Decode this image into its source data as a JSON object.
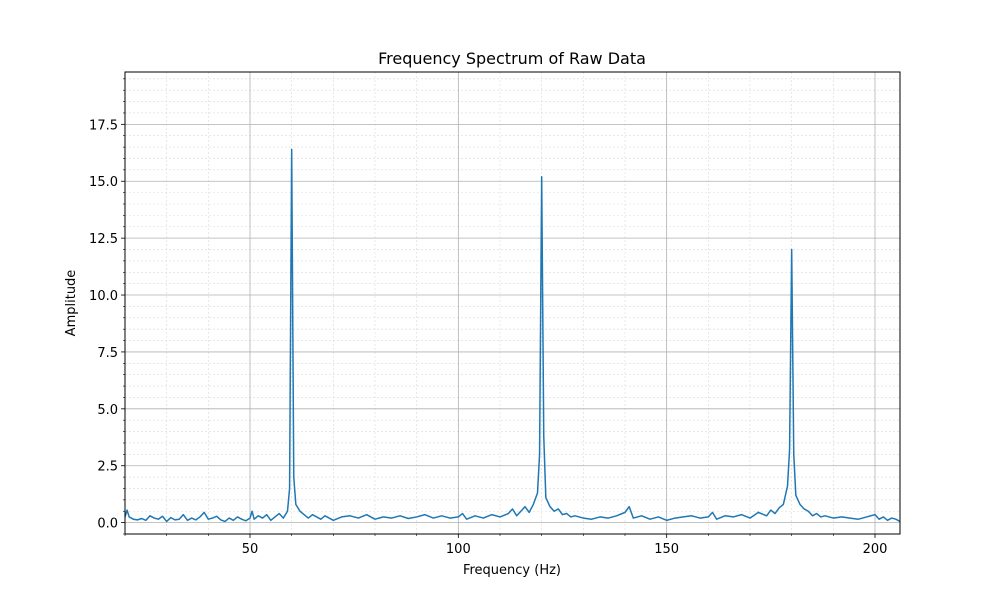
{
  "chart_data": {
    "type": "line",
    "title": "Frequency Spectrum of Raw Data",
    "xlabel": "Frequency (Hz)",
    "ylabel": "Amplitude",
    "xlim": [
      20,
      206
    ],
    "ylim": [
      -0.5,
      19.8
    ],
    "x_ticks": [
      50,
      100,
      150,
      200
    ],
    "y_ticks": [
      0.0,
      2.5,
      5.0,
      7.5,
      10.0,
      12.5,
      15.0,
      17.5
    ],
    "x_tick_labels": [
      "50",
      "100",
      "150",
      "200"
    ],
    "y_tick_labels": [
      "0.0",
      "2.5",
      "5.0",
      "7.5",
      "10.0",
      "12.5",
      "15.0",
      "17.5"
    ],
    "grid": {
      "major": true,
      "minor": true
    },
    "line_color": "#1f77b4",
    "series": [
      {
        "x": [
          20,
          20.5,
          21,
          22,
          23,
          24,
          25,
          26,
          27,
          28,
          29,
          30,
          31,
          32,
          33,
          34,
          35,
          36,
          37,
          38,
          39,
          40,
          41,
          42,
          43,
          44,
          45,
          46,
          47,
          48,
          49,
          50,
          50.5,
          51,
          52,
          53,
          54,
          55,
          56,
          57,
          58,
          59,
          59.5,
          60,
          60.5,
          61,
          62,
          63,
          64,
          65,
          66,
          67,
          68,
          69,
          70,
          72,
          74,
          76,
          78,
          80,
          82,
          84,
          86,
          88,
          90,
          92,
          94,
          96,
          98,
          100,
          101,
          102,
          104,
          106,
          108,
          110,
          112,
          113,
          114,
          115,
          116,
          117,
          118,
          119,
          119.5,
          120,
          120.5,
          121,
          122,
          123,
          124,
          125,
          126,
          127,
          128,
          130,
          132,
          134,
          136,
          138,
          140,
          141,
          142,
          144,
          146,
          148,
          150,
          152,
          154,
          156,
          158,
          160,
          161,
          162,
          164,
          166,
          168,
          170,
          172,
          174,
          175,
          176,
          177,
          178,
          179,
          179.5,
          180,
          180.5,
          181,
          182,
          183,
          184,
          185,
          186,
          187,
          188,
          190,
          192,
          194,
          196,
          198,
          200,
          201,
          202,
          203,
          204,
          205,
          206
        ],
        "y": [
          0.25,
          0.55,
          0.25,
          0.15,
          0.12,
          0.18,
          0.1,
          0.3,
          0.2,
          0.15,
          0.28,
          0.05,
          0.22,
          0.12,
          0.15,
          0.35,
          0.1,
          0.2,
          0.12,
          0.25,
          0.45,
          0.15,
          0.2,
          0.28,
          0.12,
          0.05,
          0.2,
          0.1,
          0.25,
          0.15,
          0.08,
          0.2,
          0.5,
          0.15,
          0.3,
          0.2,
          0.35,
          0.1,
          0.25,
          0.4,
          0.2,
          0.5,
          1.5,
          16.4,
          2.0,
          0.8,
          0.5,
          0.35,
          0.2,
          0.35,
          0.25,
          0.15,
          0.3,
          0.2,
          0.1,
          0.25,
          0.3,
          0.2,
          0.35,
          0.15,
          0.25,
          0.2,
          0.3,
          0.18,
          0.25,
          0.35,
          0.2,
          0.3,
          0.2,
          0.25,
          0.4,
          0.15,
          0.3,
          0.2,
          0.35,
          0.25,
          0.4,
          0.6,
          0.3,
          0.5,
          0.7,
          0.45,
          0.8,
          1.3,
          3.0,
          15.2,
          3.8,
          1.1,
          0.7,
          0.5,
          0.6,
          0.35,
          0.4,
          0.25,
          0.3,
          0.2,
          0.15,
          0.25,
          0.2,
          0.3,
          0.45,
          0.7,
          0.2,
          0.3,
          0.15,
          0.25,
          0.1,
          0.2,
          0.25,
          0.3,
          0.2,
          0.25,
          0.45,
          0.15,
          0.3,
          0.25,
          0.35,
          0.2,
          0.45,
          0.3,
          0.55,
          0.4,
          0.65,
          0.8,
          1.6,
          3.2,
          12.0,
          3.0,
          1.2,
          0.8,
          0.6,
          0.5,
          0.3,
          0.4,
          0.25,
          0.3,
          0.2,
          0.25,
          0.2,
          0.15,
          0.25,
          0.35,
          0.15,
          0.25,
          0.1,
          0.2,
          0.15,
          0.05
        ]
      }
    ]
  }
}
